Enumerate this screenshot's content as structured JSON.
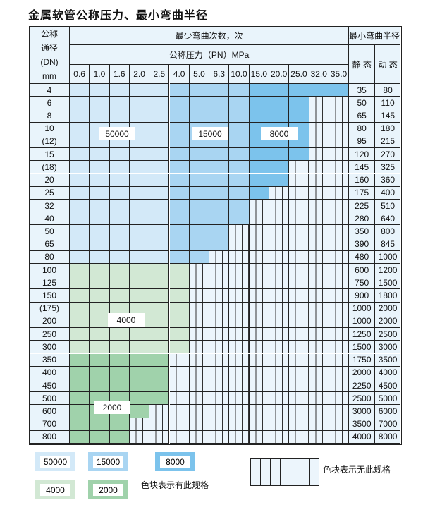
{
  "title": "金属软管公称压力、最小弯曲半径",
  "header": {
    "dn_label": [
      "公称",
      "通径",
      "(DN)",
      "mm"
    ],
    "cycles_label": "最少弯曲次数，次",
    "pressure_label": "公称压力（PN）MPa",
    "radius_label": "最小弯曲半径",
    "static_label": "静 态",
    "dynamic_label": "动 态",
    "pressures": [
      "0.6",
      "1.0",
      "1.6",
      "2.0",
      "2.5",
      "4.0",
      "5.0",
      "6.3",
      "10.0",
      "15.0",
      "20.0",
      "25.0",
      "32.0",
      "35.0"
    ]
  },
  "colors": {
    "50000": "#d3e9f8",
    "15000": "#a9d5f2",
    "8000": "#7cc3ec",
    "4000": "#d2e8d4",
    "2000": "#a0d2ab",
    "none": "#ecf5fc",
    "border": "#222222"
  },
  "rows": [
    {
      "dn": "4",
      "static": "35",
      "dynamic": "80",
      "fill": [
        [
          "50000",
          5
        ],
        [
          "15000",
          4
        ],
        [
          "8000",
          5
        ]
      ]
    },
    {
      "dn": "6",
      "static": "50",
      "dynamic": "110",
      "fill": [
        [
          "50000",
          5
        ],
        [
          "15000",
          4
        ],
        [
          "8000",
          3
        ]
      ]
    },
    {
      "dn": "8",
      "static": "65",
      "dynamic": "145",
      "fill": [
        [
          "50000",
          5
        ],
        [
          "15000",
          4
        ],
        [
          "8000",
          3
        ]
      ]
    },
    {
      "dn": "10",
      "static": "80",
      "dynamic": "180",
      "fill": [
        [
          "50000",
          5
        ],
        [
          "15000",
          4
        ],
        [
          "8000",
          3
        ]
      ]
    },
    {
      "dn": "(12)",
      "static": "95",
      "dynamic": "215",
      "fill": [
        [
          "50000",
          5
        ],
        [
          "15000",
          4
        ],
        [
          "8000",
          3
        ]
      ]
    },
    {
      "dn": "15",
      "static": "120",
      "dynamic": "270",
      "fill": [
        [
          "50000",
          5
        ],
        [
          "15000",
          4
        ],
        [
          "8000",
          3
        ]
      ]
    },
    {
      "dn": "(18)",
      "static": "145",
      "dynamic": "325",
      "fill": [
        [
          "50000",
          5
        ],
        [
          "15000",
          4
        ],
        [
          "8000",
          2
        ]
      ]
    },
    {
      "dn": "20",
      "static": "160",
      "dynamic": "360",
      "fill": [
        [
          "50000",
          5
        ],
        [
          "15000",
          4
        ],
        [
          "8000",
          2
        ]
      ]
    },
    {
      "dn": "25",
      "static": "175",
      "dynamic": "400",
      "fill": [
        [
          "50000",
          5
        ],
        [
          "15000",
          4
        ],
        [
          "8000",
          1
        ]
      ]
    },
    {
      "dn": "32",
      "static": "225",
      "dynamic": "510",
      "fill": [
        [
          "50000",
          5
        ],
        [
          "15000",
          4
        ]
      ]
    },
    {
      "dn": "40",
      "static": "280",
      "dynamic": "640",
      "fill": [
        [
          "50000",
          5
        ],
        [
          "15000",
          4
        ]
      ]
    },
    {
      "dn": "50",
      "static": "350",
      "dynamic": "800",
      "fill": [
        [
          "50000",
          5
        ],
        [
          "15000",
          3
        ]
      ]
    },
    {
      "dn": "65",
      "static": "390",
      "dynamic": "845",
      "fill": [
        [
          "50000",
          5
        ],
        [
          "15000",
          3
        ]
      ]
    },
    {
      "dn": "80",
      "static": "480",
      "dynamic": "1000",
      "fill": [
        [
          "50000",
          5
        ],
        [
          "15000",
          2
        ]
      ]
    },
    {
      "dn": "100",
      "static": "600",
      "dynamic": "1200",
      "fill": [
        [
          "4000",
          6
        ]
      ]
    },
    {
      "dn": "125",
      "static": "750",
      "dynamic": "1500",
      "fill": [
        [
          "4000",
          6
        ]
      ]
    },
    {
      "dn": "150",
      "static": "900",
      "dynamic": "1800",
      "fill": [
        [
          "4000",
          6
        ]
      ]
    },
    {
      "dn": "(175)",
      "static": "1000",
      "dynamic": "2000",
      "fill": [
        [
          "4000",
          6
        ]
      ]
    },
    {
      "dn": "200",
      "static": "1000",
      "dynamic": "2000",
      "fill": [
        [
          "4000",
          6
        ]
      ]
    },
    {
      "dn": "250",
      "static": "1250",
      "dynamic": "2500",
      "fill": [
        [
          "4000",
          6
        ]
      ]
    },
    {
      "dn": "300",
      "static": "1500",
      "dynamic": "3000",
      "fill": [
        [
          "4000",
          6
        ]
      ]
    },
    {
      "dn": "350",
      "static": "1750",
      "dynamic": "3500",
      "fill": [
        [
          "2000",
          5
        ]
      ]
    },
    {
      "dn": "400",
      "static": "2000",
      "dynamic": "4000",
      "fill": [
        [
          "2000",
          5
        ]
      ]
    },
    {
      "dn": "450",
      "static": "2250",
      "dynamic": "4500",
      "fill": [
        [
          "2000",
          5
        ]
      ]
    },
    {
      "dn": "500",
      "static": "2500",
      "dynamic": "5000",
      "fill": [
        [
          "2000",
          5
        ]
      ]
    },
    {
      "dn": "600",
      "static": "3000",
      "dynamic": "6000",
      "fill": [
        [
          "2000",
          4
        ]
      ]
    },
    {
      "dn": "700",
      "static": "3500",
      "dynamic": "7000",
      "fill": [
        [
          "2000",
          3
        ]
      ]
    },
    {
      "dn": "800",
      "static": "4000",
      "dynamic": "8000",
      "fill": [
        [
          "2000",
          3
        ]
      ]
    }
  ],
  "region_labels": [
    "50000",
    "15000",
    "8000",
    "4000",
    "2000"
  ],
  "legend": {
    "items": [
      "50000",
      "15000",
      "8000",
      "4000",
      "2000"
    ],
    "has_spec_text": "色块表示有此规格",
    "no_spec_text": "色块表示无此规格"
  }
}
